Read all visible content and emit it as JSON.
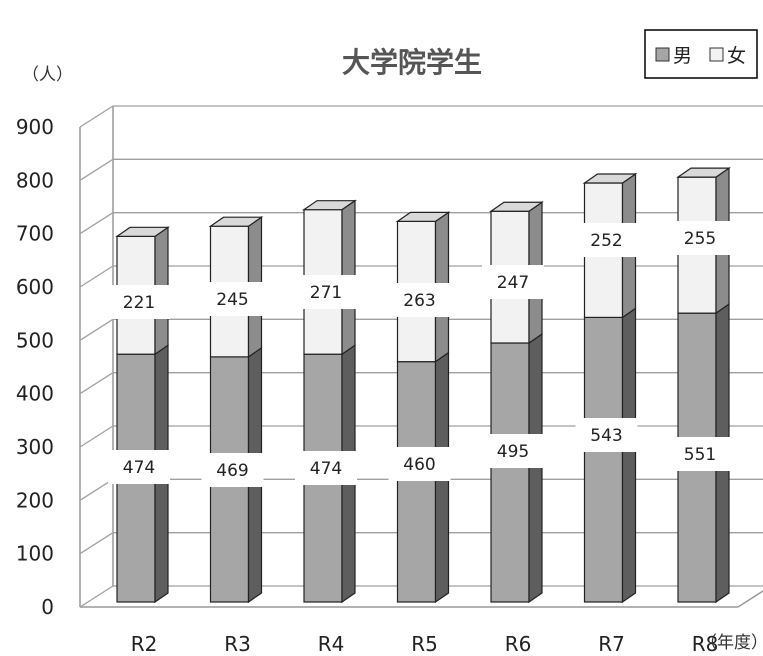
{
  "chart_data": {
    "type": "bar",
    "stacked": true,
    "title": "大学院学生",
    "ylabel": "（人）",
    "xlabel": "（年度）",
    "categories": [
      "R2",
      "R3",
      "R4",
      "R5",
      "R6",
      "R7",
      "R8"
    ],
    "series": [
      {
        "name": "男",
        "color": "#a6a6a6",
        "values": [
          474,
          469,
          474,
          460,
          495,
          543,
          551
        ]
      },
      {
        "name": "女",
        "color": "#f2f2f2",
        "values": [
          221,
          245,
          271,
          263,
          247,
          252,
          255
        ]
      }
    ],
    "ylim": [
      0,
      900
    ],
    "yticks": [
      0,
      100,
      200,
      300,
      400,
      500,
      600,
      700,
      800,
      900
    ],
    "grid": true,
    "legend": "top-right"
  }
}
